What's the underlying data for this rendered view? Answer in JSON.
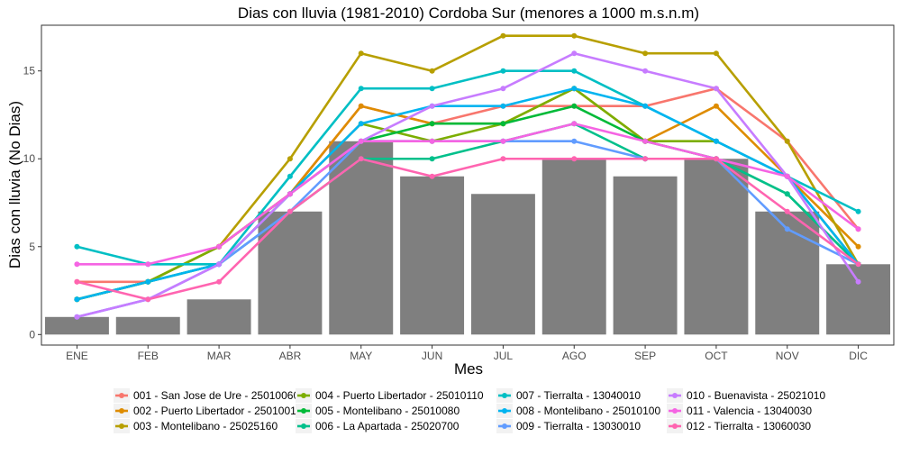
{
  "chart_data": {
    "type": "bar",
    "title": "Dias con lluvia (1981-2010) Cordoba Sur (menores a 1000 m.s.n.m)",
    "xlabel": "Mes",
    "ylabel": "Dias con lluvia (No Dias)",
    "ylim": [
      -0.6,
      17.6
    ],
    "yticks": [
      0,
      5,
      10,
      15
    ],
    "grid": "off",
    "legend_position": "bottom",
    "categories": [
      "ENE",
      "FEB",
      "MAR",
      "ABR",
      "MAY",
      "JUN",
      "JUL",
      "AGO",
      "SEP",
      "OCT",
      "NOV",
      "DIC"
    ],
    "bar_series": {
      "color": "#7f7f7f",
      "values": [
        1,
        1,
        2,
        7,
        11,
        9,
        8,
        10,
        9,
        10,
        7,
        4
      ]
    },
    "series": [
      {
        "name": "001 - San Jose de Ure - 25010060",
        "color": "#F8766D",
        "values": [
          3,
          3,
          5,
          8,
          13,
          12,
          13,
          13,
          13,
          14,
          11,
          6
        ]
      },
      {
        "name": "002 - Puerto Libertador - 25010010",
        "color": "#DE8C00",
        "values": [
          2,
          3,
          5,
          8,
          13,
          12,
          12,
          14,
          11,
          13,
          9,
          5
        ]
      },
      {
        "name": "003 - Montelibano - 25025160",
        "color": "#B79F00",
        "values": [
          2,
          3,
          5,
          10,
          16,
          15,
          17,
          17,
          16,
          16,
          11,
          4
        ]
      },
      {
        "name": "004 - Puerto Libertador - 25010110",
        "color": "#7CAE00",
        "values": [
          2,
          3,
          5,
          8,
          12,
          11,
          12,
          14,
          11,
          11,
          9,
          4
        ]
      },
      {
        "name": "005 - Montelibano - 25010080",
        "color": "#00BA38",
        "values": [
          2,
          3,
          4,
          8,
          11,
          12,
          12,
          13,
          11,
          10,
          8,
          4
        ]
      },
      {
        "name": "006 - La Apartada - 25020700",
        "color": "#00C08B",
        "values": [
          2,
          3,
          4,
          7,
          10,
          10,
          11,
          12,
          10,
          10,
          8,
          4
        ]
      },
      {
        "name": "007 - Tierralta - 13040010",
        "color": "#00BFC4",
        "values": [
          5,
          4,
          4,
          9,
          14,
          14,
          15,
          15,
          13,
          11,
          9,
          7
        ]
      },
      {
        "name": "008 - Montelibano - 25010100",
        "color": "#00B4F0",
        "values": [
          2,
          3,
          4,
          8,
          12,
          13,
          13,
          14,
          13,
          11,
          9,
          4
        ]
      },
      {
        "name": "009 - Tierralta - 13030010",
        "color": "#619CFF",
        "values": [
          1,
          2,
          4,
          7,
          11,
          11,
          11,
          11,
          10,
          10,
          6,
          4
        ]
      },
      {
        "name": "010 - Buenavista - 25021010",
        "color": "#C77CFF",
        "values": [
          1,
          2,
          4,
          8,
          11,
          13,
          14,
          16,
          15,
          14,
          9,
          3
        ]
      },
      {
        "name": "011 - Valencia - 13040030",
        "color": "#F564E3",
        "values": [
          4,
          4,
          5,
          8,
          11,
          11,
          11,
          12,
          11,
          10,
          9,
          6
        ]
      },
      {
        "name": "012 - Tierralta - 13060030",
        "color": "#FF64B0",
        "values": [
          3,
          2,
          3,
          7,
          10,
          9,
          10,
          10,
          10,
          10,
          7,
          4
        ]
      }
    ]
  }
}
